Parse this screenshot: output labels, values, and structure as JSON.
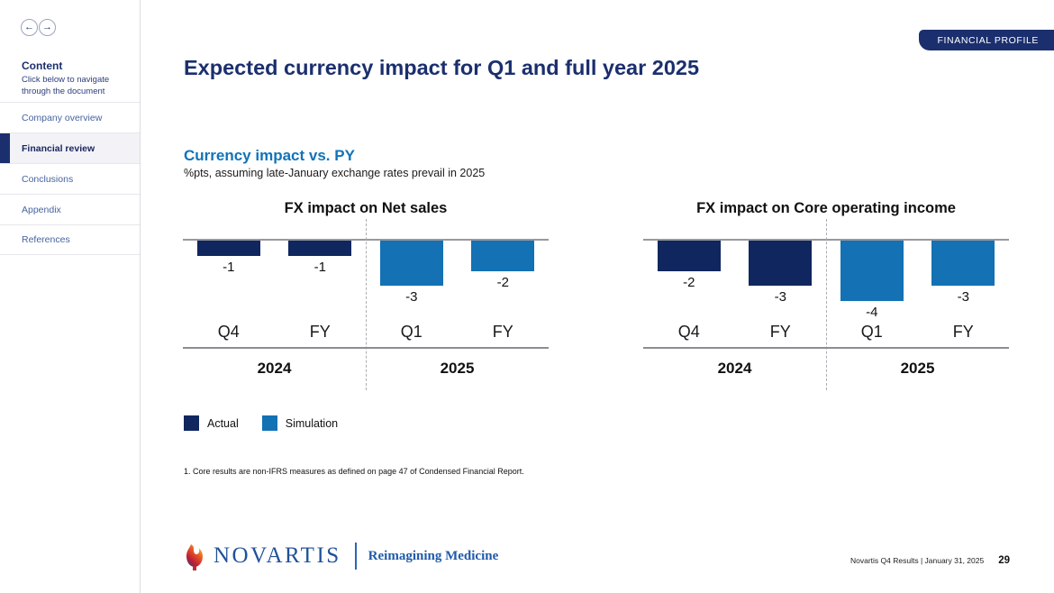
{
  "sidebar": {
    "back_icon": "←",
    "forward_icon": "→",
    "heading": "Content",
    "subheading": "Click below to navigate through the document",
    "items": [
      {
        "label": "Company overview",
        "active": false
      },
      {
        "label": "Financial review",
        "active": true
      },
      {
        "label": "Conclusions",
        "active": false
      },
      {
        "label": "Appendix",
        "active": false
      },
      {
        "label": "References",
        "active": false
      }
    ]
  },
  "header": {
    "badge": "FINANCIAL PROFILE",
    "title": "Expected currency impact for Q1 and full year 2025"
  },
  "section": {
    "heading": "Currency impact vs. PY",
    "subheading": "%pts, assuming late-January exchange rates prevail in 2025"
  },
  "chart_data": [
    {
      "type": "bar",
      "title": "FX impact on Net sales",
      "unit": "%pts vs PY",
      "categories": [
        "Q4",
        "FY",
        "Q1",
        "FY"
      ],
      "values": [
        -1,
        -1,
        -3,
        -2
      ],
      "bar_series": [
        "Actual",
        "Actual",
        "Simulation",
        "Simulation"
      ],
      "year_groups": [
        "2024",
        "2025"
      ],
      "ylim": [
        -5,
        0
      ],
      "grid": false,
      "value_labels": [
        "-1",
        "-1",
        "-3",
        "-2"
      ]
    },
    {
      "type": "bar",
      "title": "FX impact on Core operating income",
      "unit": "%pts vs PY",
      "categories": [
        "Q4",
        "FY",
        "Q1",
        "FY"
      ],
      "values": [
        -2,
        -3,
        -4,
        -3
      ],
      "bar_series": [
        "Actual",
        "Actual",
        "Simulation",
        "Simulation"
      ],
      "year_groups": [
        "2024",
        "2025"
      ],
      "ylim": [
        -5,
        0
      ],
      "grid": false,
      "value_labels": [
        "-2",
        "-3",
        "-4",
        "-3"
      ]
    }
  ],
  "legend": [
    {
      "label": "Actual",
      "color": "#10265f"
    },
    {
      "label": "Simulation",
      "color": "#1371b4"
    }
  ],
  "footnote": "1. Core results are non-IFRS measures as defined on page 47 of Condensed Financial Report.",
  "footer": {
    "brand": "NOVARTIS",
    "tagline": "Reimagining Medicine",
    "doc_info": "Novartis Q4 Results | January 31, 2025",
    "page_number": "29"
  },
  "colors": {
    "actual_bar": "#10265f",
    "simulation_bar": "#1371b4",
    "navy_accent": "#1b2f6e",
    "blue_heading": "#1173b9"
  }
}
